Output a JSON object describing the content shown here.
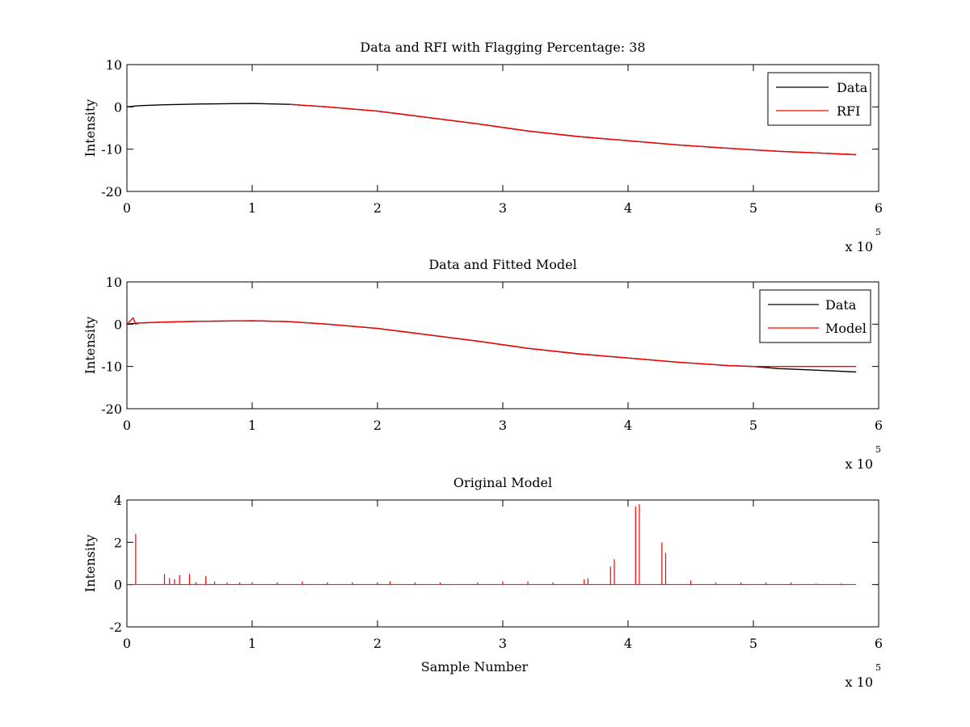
{
  "figure": {
    "background": "#ffffff"
  },
  "chart_data": [
    {
      "type": "line",
      "title": "Data and RFI with Flagging Percentage: 38",
      "xlabel": "",
      "ylabel": "Intensity",
      "xlim": [
        0,
        6
      ],
      "ylim": [
        -20,
        10
      ],
      "xticks": [
        "0",
        "1",
        "2",
        "3",
        "4",
        "5",
        "6"
      ],
      "yticks": [
        "10",
        "0",
        "-10",
        "-20"
      ],
      "x_multiplier": {
        "base": "x 10",
        "exponent": "5"
      },
      "legend": [
        {
          "label": "Data",
          "color": "#000000"
        },
        {
          "label": "RFI",
          "color": "#ff0000"
        }
      ],
      "legend_position": "top-right",
      "series": [
        {
          "name": "Data",
          "color": "#000000",
          "x": [
            0,
            0.1,
            0.3,
            0.6,
            1.0,
            1.3,
            1.6,
            2.0,
            2.4,
            2.8,
            3.2,
            3.6,
            4.0,
            4.4,
            4.8,
            5.2,
            5.6,
            5.82
          ],
          "y": [
            0,
            0.3,
            0.5,
            0.7,
            0.8,
            0.6,
            0,
            -1,
            -2.5,
            -4,
            -5.7,
            -7,
            -8,
            -9,
            -9.8,
            -10.5,
            -11,
            -11.3
          ]
        },
        {
          "name": "RFI",
          "color": "#ff0000",
          "x": [
            1.3,
            1.6,
            2.0,
            2.4,
            2.8,
            3.2,
            3.6,
            4.0,
            4.4,
            4.8,
            5.2,
            5.6,
            5.82
          ],
          "y": [
            0.6,
            0,
            -1,
            -2.5,
            -4,
            -5.7,
            -7,
            -8,
            -9,
            -9.8,
            -10.5,
            -11,
            -11.3
          ]
        }
      ]
    },
    {
      "type": "line",
      "title": "Data and Fitted Model",
      "xlabel": "",
      "ylabel": "Intensity",
      "xlim": [
        0,
        6
      ],
      "ylim": [
        -20,
        10
      ],
      "xticks": [
        "0",
        "1",
        "2",
        "3",
        "4",
        "5",
        "6"
      ],
      "yticks": [
        "10",
        "0",
        "-10",
        "-20"
      ],
      "x_multiplier": {
        "base": "x 10",
        "exponent": "5"
      },
      "legend": [
        {
          "label": "Data",
          "color": "#000000"
        },
        {
          "label": "Model",
          "color": "#ff0000"
        }
      ],
      "legend_position": "top-right",
      "series": [
        {
          "name": "Data",
          "color": "#000000",
          "x": [
            0,
            0.1,
            0.3,
            0.6,
            1.0,
            1.3,
            1.6,
            2.0,
            2.4,
            2.8,
            3.2,
            3.6,
            4.0,
            4.4,
            4.8,
            5.0,
            5.2,
            5.6,
            5.82
          ],
          "y": [
            0,
            0.3,
            0.5,
            0.7,
            0.8,
            0.6,
            0,
            -1,
            -2.5,
            -4,
            -5.7,
            -7,
            -8,
            -9,
            -9.8,
            -10,
            -10.5,
            -11,
            -11.3
          ]
        },
        {
          "name": "Model",
          "color": "#ff0000",
          "x": [
            0,
            0.05,
            0.07,
            0.1,
            0.3,
            0.6,
            1.0,
            1.3,
            1.6,
            2.0,
            2.4,
            2.8,
            3.2,
            3.6,
            4.0,
            4.4,
            4.8,
            5.0,
            5.4,
            5.82
          ],
          "y": [
            0,
            1.5,
            0,
            0.3,
            0.5,
            0.7,
            0.8,
            0.6,
            0,
            -1,
            -2.5,
            -4,
            -5.7,
            -7,
            -8,
            -9,
            -9.8,
            -10,
            -10,
            -10
          ]
        }
      ]
    },
    {
      "type": "line",
      "title": "Original Model",
      "xlabel": "Sample Number",
      "ylabel": "Intensity",
      "xlim": [
        0,
        6
      ],
      "ylim": [
        -2,
        4
      ],
      "xticks": [
        "0",
        "1",
        "2",
        "3",
        "4",
        "5",
        "6"
      ],
      "yticks": [
        "4",
        "2",
        "0",
        "-2"
      ],
      "x_multiplier": {
        "base": "x 10",
        "exponent": "5"
      },
      "baseline": {
        "x": [
          0,
          5.82
        ],
        "y": 0
      },
      "series": [
        {
          "name": "Model",
          "color": "#ff0000",
          "spikes": [
            {
              "x": 0.07,
              "y": 2.4
            },
            {
              "x": 0.3,
              "y": 0.5
            },
            {
              "x": 0.34,
              "y": 0.3
            },
            {
              "x": 0.38,
              "y": 0.25
            },
            {
              "x": 0.42,
              "y": 0.45
            },
            {
              "x": 0.5,
              "y": 0.5
            },
            {
              "x": 0.55,
              "y": 0.1
            },
            {
              "x": 0.63,
              "y": 0.4
            },
            {
              "x": 0.7,
              "y": 0.15
            },
            {
              "x": 0.8,
              "y": 0.1
            },
            {
              "x": 0.9,
              "y": 0.1
            },
            {
              "x": 1.0,
              "y": 0.1
            },
            {
              "x": 1.2,
              "y": 0.1
            },
            {
              "x": 1.4,
              "y": 0.15
            },
            {
              "x": 1.6,
              "y": 0.1
            },
            {
              "x": 1.8,
              "y": 0.1
            },
            {
              "x": 2.0,
              "y": 0.1
            },
            {
              "x": 2.1,
              "y": 0.15
            },
            {
              "x": 2.3,
              "y": 0.1
            },
            {
              "x": 2.5,
              "y": 0.1
            },
            {
              "x": 2.8,
              "y": 0.1
            },
            {
              "x": 3.0,
              "y": 0.15
            },
            {
              "x": 3.2,
              "y": 0.15
            },
            {
              "x": 3.4,
              "y": 0.1
            },
            {
              "x": 3.65,
              "y": 0.25
            },
            {
              "x": 3.68,
              "y": 0.3
            },
            {
              "x": 3.86,
              "y": 0.85
            },
            {
              "x": 3.89,
              "y": 1.2
            },
            {
              "x": 4.06,
              "y": 3.7
            },
            {
              "x": 4.09,
              "y": 3.8
            },
            {
              "x": 4.27,
              "y": 2.0
            },
            {
              "x": 4.3,
              "y": 1.5
            },
            {
              "x": 4.5,
              "y": 0.2
            },
            {
              "x": 4.7,
              "y": 0.1
            },
            {
              "x": 4.9,
              "y": 0.1
            },
            {
              "x": 5.1,
              "y": 0.1
            },
            {
              "x": 5.3,
              "y": 0.1
            },
            {
              "x": 5.5,
              "y": 0.05
            },
            {
              "x": 5.7,
              "y": 0.05
            }
          ]
        }
      ]
    }
  ]
}
